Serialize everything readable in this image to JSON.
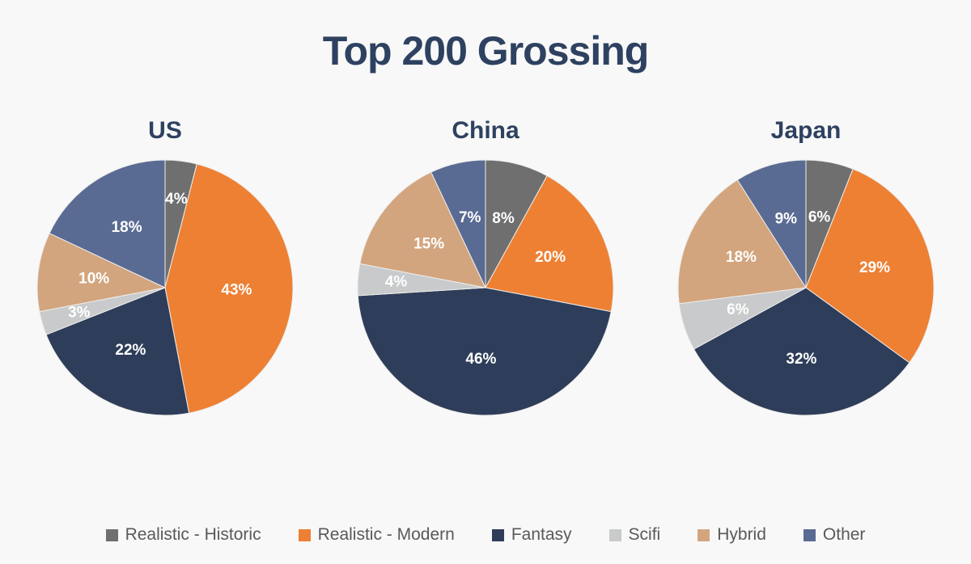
{
  "page": {
    "background": "#f8f8f8",
    "title_color": "#2e4160",
    "legend_text_color": "#595959",
    "slice_label_color": "#ffffff"
  },
  "chart_data": {
    "type": "pie",
    "title": "Top 200 Grossing",
    "value_format": "percent",
    "legend_position": "bottom",
    "categories": [
      "Realistic - Historic",
      "Realistic - Modern",
      "Fantasy",
      "Scifi",
      "Hybrid",
      "Other"
    ],
    "colors": [
      "#6f6f6f",
      "#ee8033",
      "#2e3d59",
      "#c9cacb",
      "#d3a57e",
      "#5a6b93"
    ],
    "series": [
      {
        "name": "US",
        "values": [
          4,
          43,
          22,
          3,
          10,
          18
        ]
      },
      {
        "name": "China",
        "values": [
          8,
          20,
          46,
          4,
          15,
          7
        ]
      },
      {
        "name": "Japan",
        "values": [
          6,
          29,
          32,
          6,
          18,
          9
        ]
      }
    ]
  }
}
